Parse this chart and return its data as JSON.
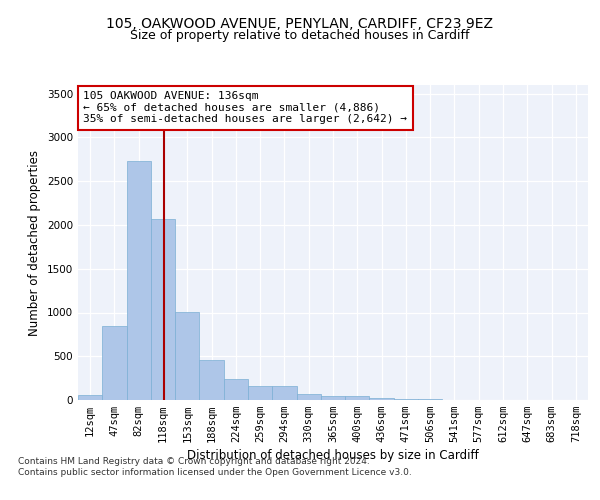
{
  "title_line1": "105, OAKWOOD AVENUE, PENYLAN, CARDIFF, CF23 9EZ",
  "title_line2": "Size of property relative to detached houses in Cardiff",
  "xlabel": "Distribution of detached houses by size in Cardiff",
  "ylabel": "Number of detached properties",
  "categories": [
    "12sqm",
    "47sqm",
    "82sqm",
    "118sqm",
    "153sqm",
    "188sqm",
    "224sqm",
    "259sqm",
    "294sqm",
    "330sqm",
    "365sqm",
    "400sqm",
    "436sqm",
    "471sqm",
    "506sqm",
    "541sqm",
    "577sqm",
    "612sqm",
    "647sqm",
    "683sqm",
    "718sqm"
  ],
  "values": [
    55,
    850,
    2730,
    2070,
    1005,
    460,
    245,
    155,
    155,
    65,
    50,
    45,
    25,
    15,
    10,
    5,
    5,
    3,
    2,
    2,
    1
  ],
  "bar_color": "#aec6e8",
  "bar_edge_color": "#7bafd4",
  "vline_color": "#aa0000",
  "annotation_text": "105 OAKWOOD AVENUE: 136sqm\n← 65% of detached houses are smaller (4,886)\n35% of semi-detached houses are larger (2,642) →",
  "annotation_box_color": "#ffffff",
  "annotation_box_edge_color": "#cc0000",
  "ylim": [
    0,
    3600
  ],
  "yticks": [
    0,
    500,
    1000,
    1500,
    2000,
    2500,
    3000,
    3500
  ],
  "background_color": "#eef2fa",
  "footer_text": "Contains HM Land Registry data © Crown copyright and database right 2024.\nContains public sector information licensed under the Open Government Licence v3.0.",
  "title_fontsize": 10,
  "subtitle_fontsize": 9,
  "axis_label_fontsize": 8.5,
  "tick_fontsize": 7.5,
  "annotation_fontsize": 8,
  "footer_fontsize": 6.5,
  "property_sqm": 136,
  "bin_width": 35,
  "first_bin": 12
}
